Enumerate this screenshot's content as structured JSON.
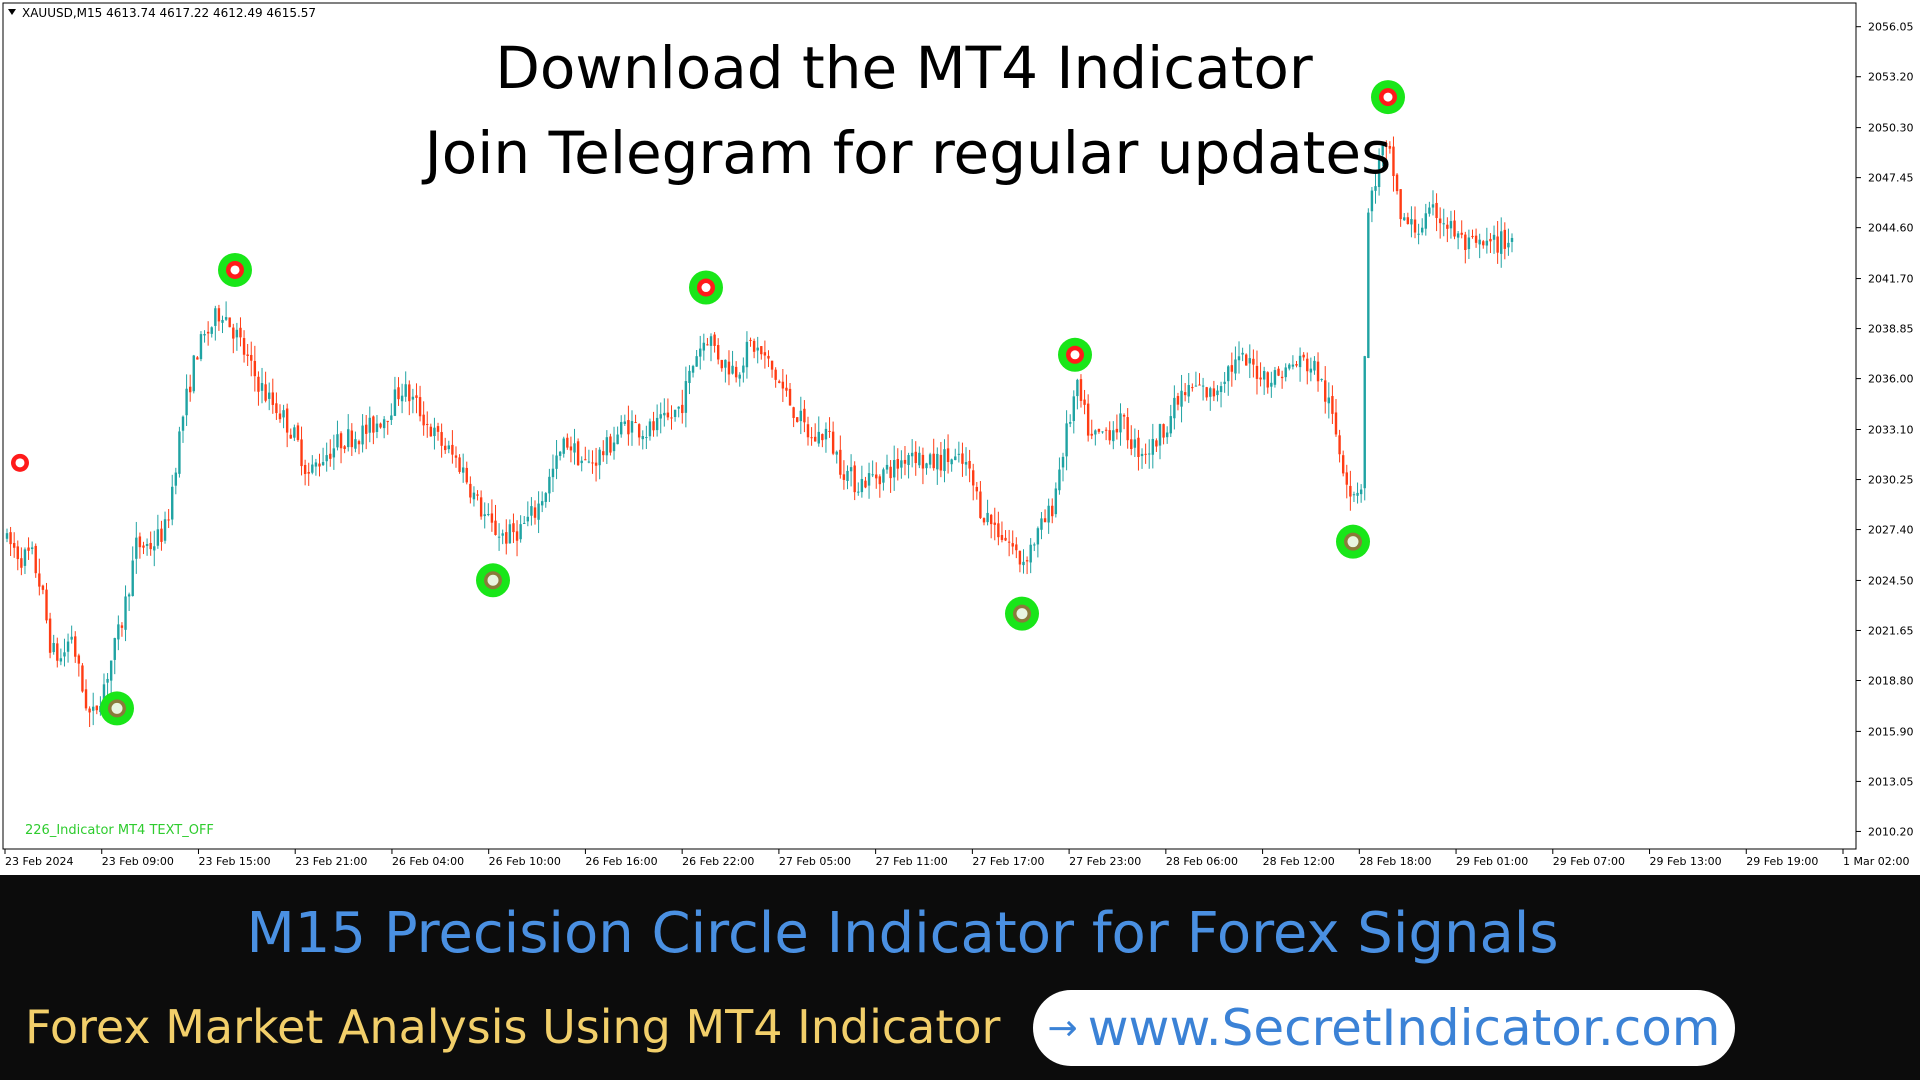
{
  "chart_data": {
    "type": "candlestick",
    "symbol_header": "XAUUSD,M15  4613.74 4617.22 4612.49 4615.57",
    "headline_1": "Download the MT4 Indicator",
    "headline_2": "Join Telegram for regular updates",
    "indicator_label": "226_Indicator MT4 TEXT_OFF",
    "ylim": [
      2009.2,
      2057.4
    ],
    "y_ticks": [
      "2056.05",
      "2053.20",
      "2050.30",
      "2047.45",
      "2044.60",
      "2041.70",
      "2038.85",
      "2036.00",
      "2033.10",
      "2030.25",
      "2027.40",
      "2024.50",
      "2021.65",
      "2018.80",
      "2015.90",
      "2013.05",
      "2010.20"
    ],
    "x_ticks": [
      "23 Feb 2024",
      "23 Feb 09:00",
      "23 Feb 15:00",
      "23 Feb 21:00",
      "26 Feb 04:00",
      "26 Feb 10:00",
      "26 Feb 16:00",
      "26 Feb 22:00",
      "27 Feb 05:00",
      "27 Feb 11:00",
      "27 Feb 17:00",
      "27 Feb 23:00",
      "28 Feb 06:00",
      "28 Feb 12:00",
      "28 Feb 18:00",
      "29 Feb 01:00",
      "29 Feb 07:00",
      "29 Feb 13:00",
      "29 Feb 19:00",
      "1 Mar 02:00"
    ],
    "bar_count": 420,
    "price_path": [
      [
        0,
        2027.0
      ],
      [
        15,
        2026.5
      ],
      [
        25,
        2025.8
      ],
      [
        35,
        2026.0
      ],
      [
        45,
        2024.0
      ],
      [
        55,
        2020.5
      ],
      [
        65,
        2020.0
      ],
      [
        75,
        2021.5
      ],
      [
        85,
        2018.5
      ],
      [
        95,
        2016.5
      ],
      [
        110,
        2019.0
      ],
      [
        125,
        2022.0
      ],
      [
        140,
        2026.5
      ],
      [
        155,
        2026.5
      ],
      [
        170,
        2027.5
      ],
      [
        185,
        2033.5
      ],
      [
        200,
        2037.5
      ],
      [
        215,
        2039.0
      ],
      [
        225,
        2040.0
      ],
      [
        240,
        2038.5
      ],
      [
        255,
        2036.5
      ],
      [
        270,
        2035.0
      ],
      [
        285,
        2034.0
      ],
      [
        300,
        2032.5
      ],
      [
        312,
        2030.5
      ],
      [
        325,
        2031.5
      ],
      [
        345,
        2032.5
      ],
      [
        370,
        2033.0
      ],
      [
        390,
        2034.0
      ],
      [
        405,
        2035.5
      ],
      [
        420,
        2034.5
      ],
      [
        435,
        2033.0
      ],
      [
        450,
        2032.0
      ],
      [
        465,
        2031.0
      ],
      [
        480,
        2029.0
      ],
      [
        495,
        2027.5
      ],
      [
        510,
        2027.0
      ],
      [
        525,
        2027.5
      ],
      [
        540,
        2028.5
      ],
      [
        555,
        2030.5
      ],
      [
        570,
        2032.5
      ],
      [
        590,
        2031.0
      ],
      [
        610,
        2032.0
      ],
      [
        630,
        2033.5
      ],
      [
        650,
        2033.0
      ],
      [
        670,
        2033.5
      ],
      [
        685,
        2034.5
      ],
      [
        700,
        2037.5
      ],
      [
        712,
        2038.5
      ],
      [
        725,
        2037.0
      ],
      [
        740,
        2036.5
      ],
      [
        755,
        2038.0
      ],
      [
        770,
        2037.0
      ],
      [
        785,
        2035.5
      ],
      [
        800,
        2034.0
      ],
      [
        815,
        2032.5
      ],
      [
        830,
        2033.0
      ],
      [
        845,
        2031.0
      ],
      [
        860,
        2030.0
      ],
      [
        880,
        2030.5
      ],
      [
        900,
        2031.0
      ],
      [
        915,
        2032.0
      ],
      [
        930,
        2031.0
      ],
      [
        950,
        2031.5
      ],
      [
        970,
        2031.0
      ],
      [
        985,
        2028.5
      ],
      [
        1000,
        2027.5
      ],
      [
        1015,
        2026.5
      ],
      [
        1025,
        2025.5
      ],
      [
        1040,
        2027.0
      ],
      [
        1055,
        2028.5
      ],
      [
        1065,
        2031.5
      ],
      [
        1080,
        2035.5
      ],
      [
        1095,
        2032.5
      ],
      [
        1110,
        2033.0
      ],
      [
        1125,
        2033.5
      ],
      [
        1140,
        2032.0
      ],
      [
        1155,
        2032.0
      ],
      [
        1170,
        2033.5
      ],
      [
        1185,
        2035.0
      ],
      [
        1200,
        2035.5
      ],
      [
        1215,
        2035.0
      ],
      [
        1230,
        2036.5
      ],
      [
        1245,
        2037.0
      ],
      [
        1260,
        2036.5
      ],
      [
        1275,
        2036.0
      ],
      [
        1290,
        2036.5
      ],
      [
        1305,
        2037.0
      ],
      [
        1320,
        2036.5
      ],
      [
        1335,
        2034.0
      ],
      [
        1345,
        2031.5
      ],
      [
        1355,
        2029.5
      ],
      [
        1365,
        2030.0
      ],
      [
        1372,
        2045.5
      ],
      [
        1385,
        2049.0
      ],
      [
        1395,
        2048.5
      ],
      [
        1405,
        2045.0
      ],
      [
        1420,
        2044.5
      ],
      [
        1440,
        2045.5
      ],
      [
        1455,
        2044.5
      ],
      [
        1470,
        2043.5
      ],
      [
        1490,
        2043.5
      ],
      [
        1515,
        2044.0
      ]
    ],
    "upper_signals": [
      235,
      706,
      1075,
      1388
    ],
    "lower_signals": [
      117,
      493,
      1022,
      1353
    ],
    "left_marker_price": 2031.2
  },
  "caption": {
    "title": "M15 Precision Circle Indicator for Forex Signals",
    "subtitle": "Forex Market Analysis Using MT4 Indicator",
    "arrow": "→",
    "website": "www.SecretIndicator.com"
  },
  "colors": {
    "bull": "#1fa3a3",
    "bear": "#ff3c14",
    "signal_ring": "#19e619",
    "signal_red": "#ff1a1a",
    "caption_title": "#4a90e2",
    "caption_subtitle": "#f2cf6a",
    "link": "#3b82d6"
  }
}
